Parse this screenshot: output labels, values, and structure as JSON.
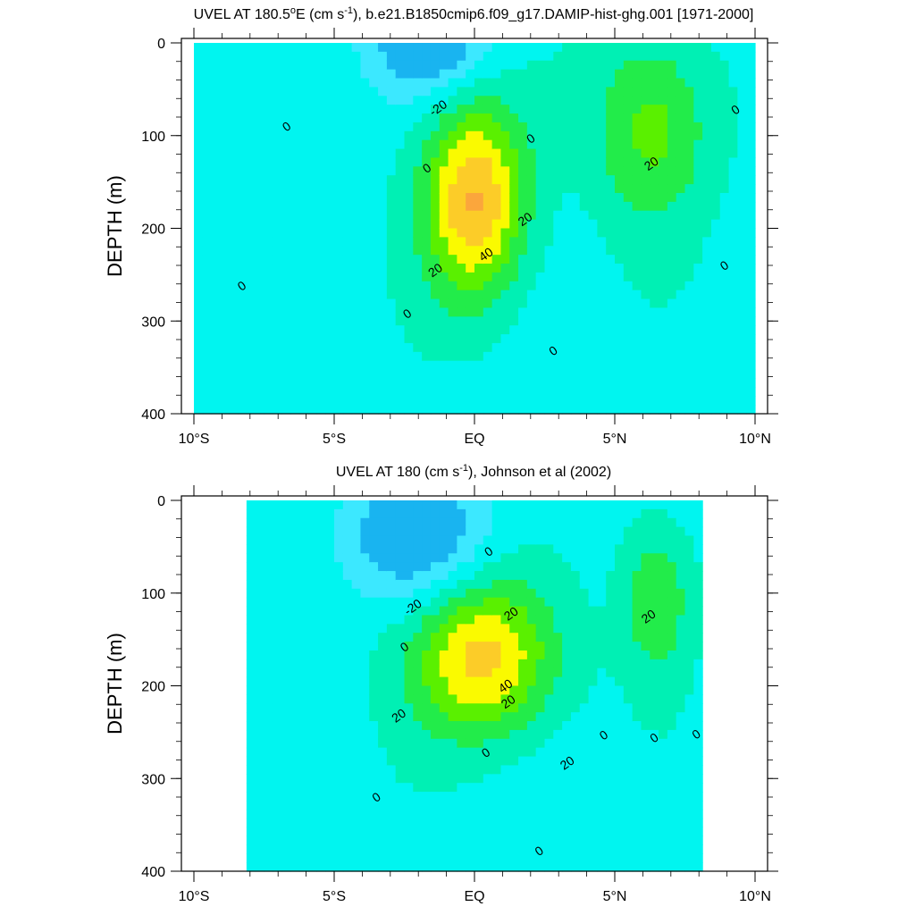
{
  "chart_data": [
    {
      "type": "heatmap",
      "title": "UVEL AT 180.5",
      "title_parts": {
        "lead": "UVEL AT 180.5",
        "deg": "o",
        "mid": "E (cm s",
        "sup": "-1",
        "tail": "), b.e21.B1850cmip6.f09_g17.DAMIP-hist-ghg.001 [1971-2000]"
      },
      "ylabel": "DEPTH (m)",
      "xlabel": "",
      "x_ticks": [
        "10°S",
        "5°S",
        "EQ",
        "5°N",
        "10°N"
      ],
      "x_tick_values": [
        -10,
        -5,
        0,
        5,
        10
      ],
      "y_ticks": [
        "0",
        "100",
        "200",
        "300",
        "400"
      ],
      "y_tick_values": [
        0,
        100,
        200,
        300,
        400
      ],
      "xlim": [
        -10,
        10
      ],
      "ylim": [
        0,
        400
      ],
      "contour_levels": [
        -30,
        -20,
        -10,
        0,
        10,
        20,
        30,
        40,
        50
      ],
      "contour_labels": [
        {
          "text": "-20",
          "x": -1.3,
          "y": 70
        },
        {
          "text": "0",
          "x": -6.7,
          "y": 90
        },
        {
          "text": "0",
          "x": -1.7,
          "y": 135
        },
        {
          "text": "0",
          "x": 2.0,
          "y": 103
        },
        {
          "text": "20",
          "x": 1.8,
          "y": 190
        },
        {
          "text": "40",
          "x": 0.4,
          "y": 228
        },
        {
          "text": "20",
          "x": -1.4,
          "y": 245
        },
        {
          "text": "20",
          "x": 6.3,
          "y": 130
        },
        {
          "text": "0",
          "x": 9.3,
          "y": 72
        },
        {
          "text": "0",
          "x": 8.9,
          "y": 240
        },
        {
          "text": "0",
          "x": -8.3,
          "y": 262
        },
        {
          "text": "0",
          "x": -2.4,
          "y": 292
        },
        {
          "text": "0",
          "x": 2.8,
          "y": 332
        }
      ],
      "features": [
        {
          "label": "equatorial undercurrent core",
          "x": 0.0,
          "y": 170,
          "peak": 55,
          "sx": 1.3,
          "sy": 75
        },
        {
          "label": "north subsurface eastward jet",
          "x": 6.3,
          "y": 90,
          "peak": 28,
          "sx": 1.5,
          "sy": 75
        },
        {
          "label": "surface westward flow",
          "x": -1.5,
          "y": 0,
          "peak": -30,
          "sx": 1.5,
          "sy": 40
        }
      ]
    },
    {
      "type": "heatmap",
      "title": "UVEL AT 180",
      "title_parts": {
        "lead": "UVEL AT 180",
        "deg": "",
        "mid": " (cm s",
        "sup": "-1",
        "tail": "), Johnson et al (2002)"
      },
      "ylabel": "DEPTH (m)",
      "xlabel": "",
      "x_ticks": [
        "10°S",
        "5°S",
        "EQ",
        "5°N",
        "10°N"
      ],
      "x_tick_values": [
        -10,
        -5,
        0,
        5,
        10
      ],
      "y_ticks": [
        "0",
        "100",
        "200",
        "300",
        "400"
      ],
      "y_tick_values": [
        0,
        100,
        200,
        300,
        400
      ],
      "xlim": [
        -10,
        10
      ],
      "ylim": [
        0,
        400
      ],
      "data_extent_x": [
        -8,
        8
      ],
      "contour_levels": [
        -30,
        -20,
        -10,
        0,
        10,
        20,
        30,
        40,
        50
      ],
      "contour_labels": [
        {
          "text": "0",
          "x": 0.5,
          "y": 55
        },
        {
          "text": "-20",
          "x": -2.2,
          "y": 115
        },
        {
          "text": "20",
          "x": 1.3,
          "y": 122
        },
        {
          "text": "20",
          "x": 6.2,
          "y": 125
        },
        {
          "text": "0",
          "x": -2.5,
          "y": 158
        },
        {
          "text": "40",
          "x": 1.1,
          "y": 200
        },
        {
          "text": "20",
          "x": 1.2,
          "y": 217
        },
        {
          "text": "20",
          "x": -2.7,
          "y": 232
        },
        {
          "text": "0",
          "x": 4.6,
          "y": 253
        },
        {
          "text": "0",
          "x": 6.4,
          "y": 256
        },
        {
          "text": "0",
          "x": 7.9,
          "y": 252
        },
        {
          "text": "0",
          "x": 0.4,
          "y": 272
        },
        {
          "text": "20",
          "x": 3.3,
          "y": 283
        },
        {
          "text": "0",
          "x": -3.5,
          "y": 320
        },
        {
          "text": "0",
          "x": 2.3,
          "y": 378
        }
      ],
      "features": [
        {
          "label": "equatorial undercurrent core",
          "x": 0.3,
          "y": 170,
          "peak": 48,
          "sx": 1.8,
          "sy": 60
        },
        {
          "label": "north subsurface eastward jet",
          "x": 6.5,
          "y": 105,
          "peak": 24,
          "sx": 0.9,
          "sy": 60
        },
        {
          "label": "surface westward flow",
          "x": -2.0,
          "y": 40,
          "peak": -28,
          "sx": 1.8,
          "sy": 50
        }
      ]
    }
  ],
  "palette": {
    "-30": "#19b4f0",
    "-20": "#3ce8ff",
    "-10": "#00f5f0",
    "0": "#00f0b4",
    "10": "#22ec4a",
    "20": "#5af000",
    "30": "#fafa00",
    "40": "#fccc28",
    "50": "#fba63c",
    "60": "#f78a28"
  }
}
